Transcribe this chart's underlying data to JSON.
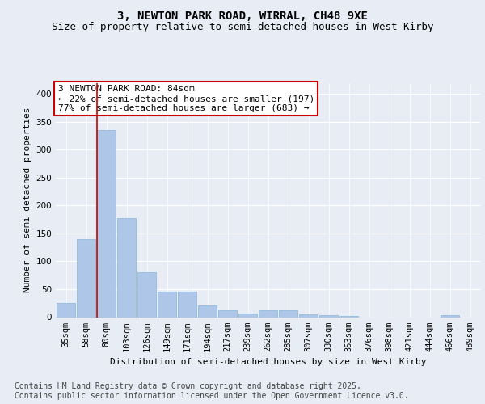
{
  "title1": "3, NEWTON PARK ROAD, WIRRAL, CH48 9XE",
  "title2": "Size of property relative to semi-detached houses in West Kirby",
  "xlabel": "Distribution of semi-detached houses by size in West Kirby",
  "ylabel": "Number of semi-detached properties",
  "categories": [
    "35sqm",
    "58sqm",
    "80sqm",
    "103sqm",
    "126sqm",
    "149sqm",
    "171sqm",
    "194sqm",
    "217sqm",
    "239sqm",
    "262sqm",
    "285sqm",
    "307sqm",
    "330sqm",
    "353sqm",
    "376sqm",
    "398sqm",
    "421sqm",
    "444sqm",
    "466sqm",
    "489sqm"
  ],
  "values": [
    25,
    140,
    335,
    178,
    80,
    46,
    46,
    21,
    12,
    7,
    13,
    13,
    5,
    4,
    2,
    0,
    0,
    0,
    0,
    4,
    0
  ],
  "bar_color": "#aec6e8",
  "bar_edge_color": "#8ab4d8",
  "vline_x_index": 2,
  "vline_color": "#cc0000",
  "annotation_text": "3 NEWTON PARK ROAD: 84sqm\n← 22% of semi-detached houses are smaller (197)\n77% of semi-detached houses are larger (683) →",
  "annotation_box_color": "#ffffff",
  "annotation_box_edge_color": "#cc0000",
  "ylim": [
    0,
    420
  ],
  "yticks": [
    0,
    50,
    100,
    150,
    200,
    250,
    300,
    350,
    400
  ],
  "bg_color": "#e8edf5",
  "plot_bg_color": "#e8edf5",
  "footer_text": "Contains HM Land Registry data © Crown copyright and database right 2025.\nContains public sector information licensed under the Open Government Licence v3.0.",
  "title1_fontsize": 10,
  "title2_fontsize": 9,
  "xlabel_fontsize": 8,
  "ylabel_fontsize": 8,
  "tick_fontsize": 7.5,
  "footer_fontsize": 7,
  "annotation_fontsize": 8
}
